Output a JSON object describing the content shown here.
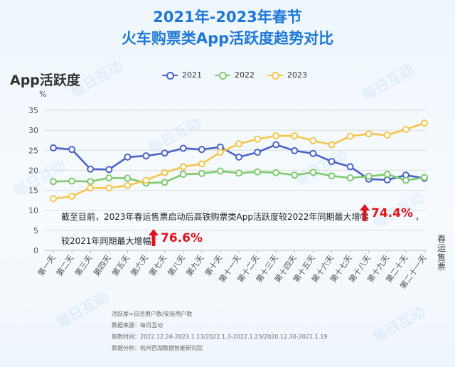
{
  "title_line1": "2021年-2023年春节",
  "title_line2": "火车购票类App活跃度趋势对比",
  "y_head": "App活跃度",
  "watermark": "每日互动",
  "side_label": "春运售票",
  "annotation": {
    "line1": "截至目前，2023年春运售票启动后高铁购票类App活跃度较2022年同期最大增幅",
    "pct1": "74.4%",
    "comma": "，",
    "line2": "较2021年同期最大增幅",
    "pct2": "76.6%"
  },
  "notes": [
    "活跃度=日活用户数/安装用户数",
    "数据来源：每日互动",
    "取数时间：2022.12.24-2023.1.13/2022.1.3-2022.1.23/2020.12.30-2021.1.19",
    "数据分析：杭州西湖数据智能研究院"
  ],
  "colors": {
    "s2021": "#4a63c6",
    "s2022": "#7ec96c",
    "s2023": "#f5c54a"
  },
  "chart_data": {
    "type": "line",
    "title": "2021年-2023年春节 火车购票类App活跃度趋势对比",
    "xlabel": "",
    "ylabel": "App活跃度",
    "y_unit": "%",
    "ylim": [
      0,
      35
    ],
    "yticks": [
      0,
      5,
      10,
      15,
      20,
      25,
      30,
      35
    ],
    "legend_position": "top",
    "categories": [
      "第一天",
      "第二天",
      "第三天",
      "第四天",
      "第五天",
      "第六天",
      "第七天",
      "第八天",
      "第九天",
      "第十天",
      "第十一天",
      "第十二天",
      "第十三天",
      "第十四天",
      "第十五天",
      "第十六天",
      "第十七天",
      "第十八天",
      "第十九天",
      "第二十天",
      "第二十一天"
    ],
    "series": [
      {
        "name": "2021",
        "values": [
          25.6,
          25.2,
          20.3,
          20.2,
          23.3,
          23.6,
          24.3,
          25.5,
          25.2,
          25.8,
          23.3,
          24.5,
          26.4,
          24.9,
          24.2,
          22.2,
          20.9,
          17.8,
          17.6,
          18.8,
          18.0
        ]
      },
      {
        "name": "2022",
        "values": [
          17.2,
          17.3,
          17.2,
          18.1,
          18.0,
          16.8,
          17.0,
          19.0,
          19.2,
          19.8,
          19.3,
          19.6,
          19.4,
          18.8,
          19.5,
          18.6,
          18.1,
          18.5,
          19.0,
          17.5,
          18.2
        ]
      },
      {
        "name": "2023",
        "values": [
          12.9,
          13.5,
          15.6,
          15.6,
          16.2,
          17.5,
          19.4,
          20.9,
          21.6,
          24.5,
          26.6,
          27.8,
          28.6,
          28.6,
          27.4,
          26.4,
          28.5,
          29.1,
          28.8,
          30.2,
          31.8
        ]
      }
    ]
  }
}
